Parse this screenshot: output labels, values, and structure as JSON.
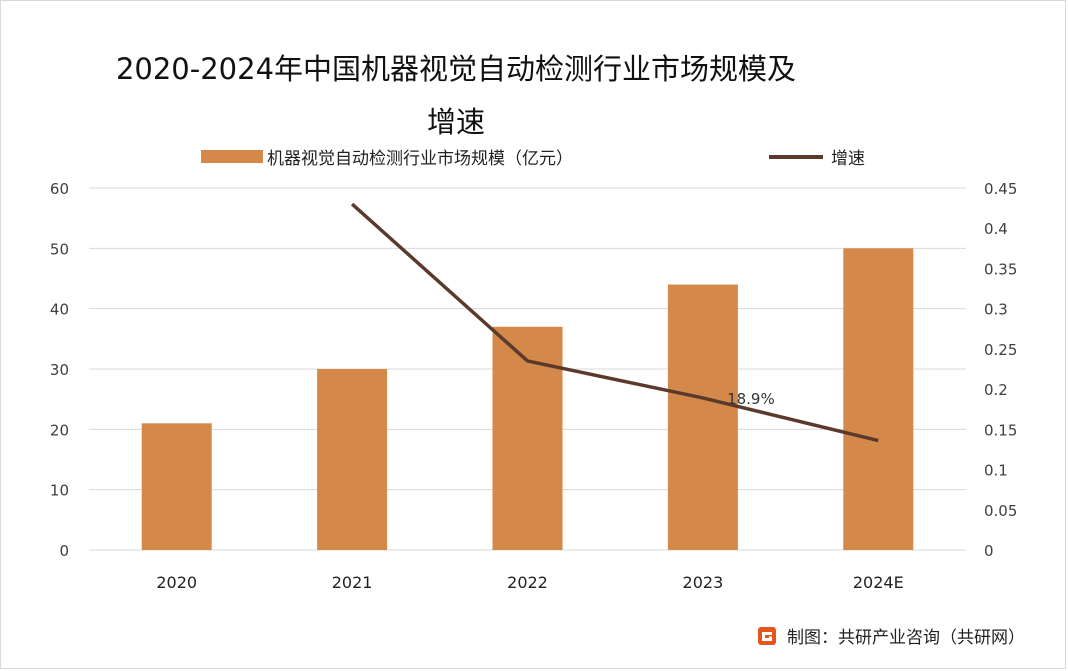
{
  "chart_data": {
    "type": "bar+line",
    "title_line1": "2020-2024年中国机器视觉自动检测行业市场规模及",
    "title_line2": "增速",
    "categories": [
      "2020",
      "2021",
      "2022",
      "2023",
      "2024E"
    ],
    "series": [
      {
        "name": "机器视觉自动检测行业市场规模（亿元）",
        "type": "bar",
        "axis": "left",
        "values": [
          21,
          30,
          37,
          44,
          50
        ]
      },
      {
        "name": "增速",
        "type": "line",
        "axis": "right",
        "values": [
          null,
          0.43,
          0.235,
          0.189,
          0.136
        ]
      }
    ],
    "annotations": [
      {
        "category": "2023",
        "series": "增速",
        "text": "18.9%"
      }
    ],
    "y_left": {
      "min": 0,
      "max": 60,
      "ticks": [
        "0",
        "10",
        "20",
        "30",
        "40",
        "50",
        "60"
      ]
    },
    "y_right": {
      "min": 0,
      "max": 0.45,
      "ticks": [
        "0",
        "0.05",
        "0.1",
        "0.15",
        "0.2",
        "0.25",
        "0.3",
        "0.35",
        "0.4",
        "0.45"
      ]
    },
    "grid": true,
    "legend_position": "top",
    "colors": {
      "bar": "#D4894A",
      "line": "#5C3A2B",
      "grid": "#d9d9d9",
      "axis_text": "#404040"
    }
  },
  "source": {
    "text": "制图：共研产业咨询（共研网）",
    "logo_icon": "gongyan-logo-icon",
    "logo_color": "#E8541E"
  }
}
